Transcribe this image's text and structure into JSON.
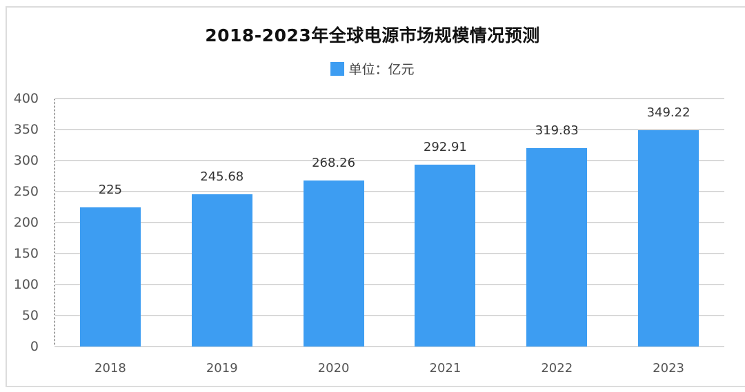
{
  "chart_data": {
    "type": "bar",
    "title": "2018-2023年全球电源市场规模情况预测",
    "legend": [
      {
        "label": "单位：亿元",
        "color": "#3d9df2"
      }
    ],
    "legend_position": "top",
    "categories": [
      "2018",
      "2019",
      "2020",
      "2021",
      "2022",
      "2023"
    ],
    "values": [
      225,
      245.68,
      268.26,
      292.91,
      319.83,
      349.22
    ],
    "data_labels": [
      "225",
      "245.68",
      "268.26",
      "292.91",
      "319.83",
      "349.22"
    ],
    "xlabel": "",
    "ylabel": "",
    "ylim": [
      0,
      400
    ],
    "yticks": [
      "0",
      "50",
      "100",
      "150",
      "200",
      "250",
      "300",
      "350",
      "400"
    ],
    "grid": true,
    "bar_color": "#3d9df2"
  }
}
